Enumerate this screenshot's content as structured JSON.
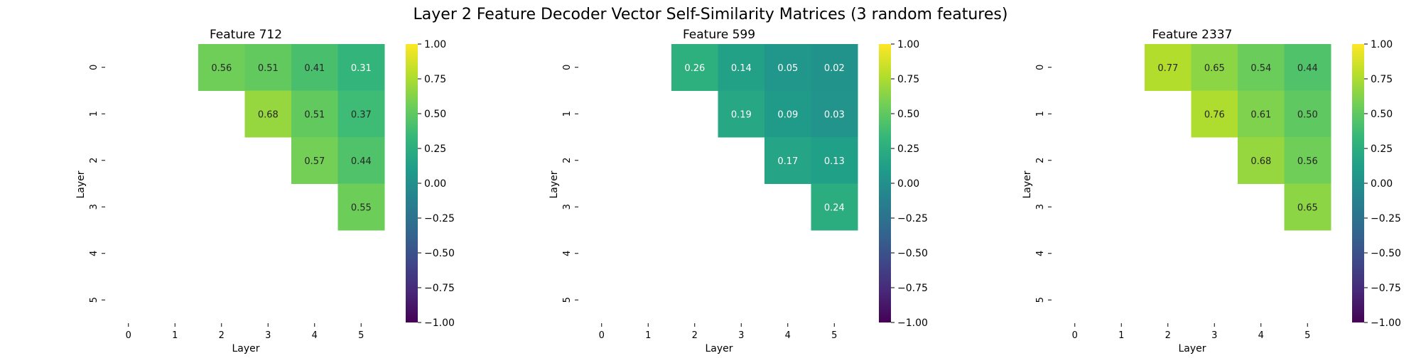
{
  "chart_data": {
    "type": "heatmap",
    "title": "Layer 2 Feature Decoder Vector Self-Similarity Matrices (3 random features)",
    "colormap": "viridis",
    "vmin": -1.0,
    "vmax": 1.0,
    "colorbar_ticks": [
      "1.00",
      "0.75",
      "0.50",
      "0.25",
      "0.00",
      "−0.25",
      "−0.50",
      "−0.75",
      "−1.00"
    ],
    "colorbar_tick_values": [
      1.0,
      0.75,
      0.5,
      0.25,
      0.0,
      -0.25,
      -0.5,
      -0.75,
      -1.0
    ],
    "row_tick_labels": [
      "0",
      "1",
      "2",
      "3",
      "4",
      "5"
    ],
    "col_tick_labels": [
      "0",
      "1",
      "2",
      "3",
      "4",
      "5"
    ],
    "panels": [
      {
        "title": "Feature 712",
        "xlabel": "Layer",
        "ylabel": "Layer",
        "cells": [
          {
            "row": 0,
            "col": 2,
            "value": 0.56,
            "label": "0.56"
          },
          {
            "row": 0,
            "col": 3,
            "value": 0.51,
            "label": "0.51"
          },
          {
            "row": 0,
            "col": 4,
            "value": 0.41,
            "label": "0.41"
          },
          {
            "row": 0,
            "col": 5,
            "value": 0.31,
            "label": "0.31"
          },
          {
            "row": 1,
            "col": 3,
            "value": 0.68,
            "label": "0.68"
          },
          {
            "row": 1,
            "col": 4,
            "value": 0.51,
            "label": "0.51"
          },
          {
            "row": 1,
            "col": 5,
            "value": 0.37,
            "label": "0.37"
          },
          {
            "row": 2,
            "col": 4,
            "value": 0.57,
            "label": "0.57"
          },
          {
            "row": 2,
            "col": 5,
            "value": 0.44,
            "label": "0.44"
          },
          {
            "row": 3,
            "col": 5,
            "value": 0.55,
            "label": "0.55"
          }
        ]
      },
      {
        "title": "Feature 599",
        "xlabel": "Layer",
        "ylabel": "Layer",
        "cells": [
          {
            "row": 0,
            "col": 2,
            "value": 0.26,
            "label": "0.26"
          },
          {
            "row": 0,
            "col": 3,
            "value": 0.14,
            "label": "0.14"
          },
          {
            "row": 0,
            "col": 4,
            "value": 0.05,
            "label": "0.05"
          },
          {
            "row": 0,
            "col": 5,
            "value": 0.02,
            "label": "0.02"
          },
          {
            "row": 1,
            "col": 3,
            "value": 0.19,
            "label": "0.19"
          },
          {
            "row": 1,
            "col": 4,
            "value": 0.09,
            "label": "0.09"
          },
          {
            "row": 1,
            "col": 5,
            "value": 0.03,
            "label": "0.03"
          },
          {
            "row": 2,
            "col": 4,
            "value": 0.17,
            "label": "0.17"
          },
          {
            "row": 2,
            "col": 5,
            "value": 0.13,
            "label": "0.13"
          },
          {
            "row": 3,
            "col": 5,
            "value": 0.24,
            "label": "0.24"
          }
        ]
      },
      {
        "title": "Feature 2337",
        "xlabel": "Layer",
        "ylabel": "Layer",
        "cells": [
          {
            "row": 0,
            "col": 2,
            "value": 0.77,
            "label": "0.77"
          },
          {
            "row": 0,
            "col": 3,
            "value": 0.65,
            "label": "0.65"
          },
          {
            "row": 0,
            "col": 4,
            "value": 0.54,
            "label": "0.54"
          },
          {
            "row": 0,
            "col": 5,
            "value": 0.44,
            "label": "0.44"
          },
          {
            "row": 1,
            "col": 3,
            "value": 0.76,
            "label": "0.76"
          },
          {
            "row": 1,
            "col": 4,
            "value": 0.61,
            "label": "0.61"
          },
          {
            "row": 1,
            "col": 5,
            "value": 0.5,
            "label": "0.50"
          },
          {
            "row": 2,
            "col": 4,
            "value": 0.68,
            "label": "0.68"
          },
          {
            "row": 2,
            "col": 5,
            "value": 0.56,
            "label": "0.56"
          },
          {
            "row": 3,
            "col": 5,
            "value": 0.65,
            "label": "0.65"
          }
        ]
      }
    ]
  }
}
